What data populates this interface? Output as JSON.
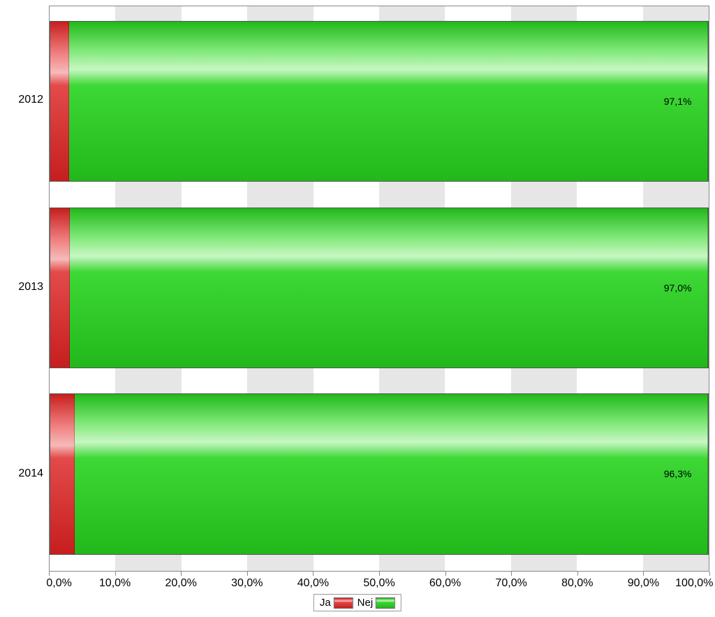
{
  "chart": {
    "type": "bar",
    "orientation": "horizontal",
    "stacked": true,
    "background_color": "#ffffff",
    "plot_border_color": "#888888",
    "grid_band_color": "#e6e6e6",
    "font_family": "Arial",
    "categories": [
      "2012",
      "2013",
      "2014"
    ],
    "bar_row_height_pct": 28.5,
    "bar_row_gap_pct": 4.5,
    "bar_row_top_pad_pct": 2.6,
    "series": [
      {
        "name": "Ja",
        "color_base": "#d92b2b",
        "gradient_stops": [
          {
            "pos": 0,
            "color": "#c71e1e"
          },
          {
            "pos": 20,
            "color": "#f08080"
          },
          {
            "pos": 32,
            "color": "#f7baba"
          },
          {
            "pos": 40,
            "color": "#e34a4a"
          },
          {
            "pos": 100,
            "color": "#c71e1e"
          }
        ],
        "values": [
          2.9,
          3.0,
          3.7
        ]
      },
      {
        "name": "Nej",
        "color_base": "#2ecc27",
        "gradient_stops": [
          {
            "pos": 0,
            "color": "#22b81b"
          },
          {
            "pos": 18,
            "color": "#7ee877"
          },
          {
            "pos": 30,
            "color": "#c8f7c4"
          },
          {
            "pos": 40,
            "color": "#3dd835"
          },
          {
            "pos": 100,
            "color": "#22b81b"
          }
        ],
        "values": [
          97.1,
          97.0,
          96.3
        ],
        "data_labels": [
          "97,1%",
          "97,0%",
          "96,3%"
        ]
      }
    ],
    "x_axis": {
      "min": 0,
      "max": 100,
      "tick_step": 10,
      "tick_labels": [
        "0,0%",
        "10,0%",
        "20,0%",
        "30,0%",
        "40,0%",
        "50,0%",
        "60,0%",
        "70,0%",
        "80,0%",
        "90,0%",
        "100,0%"
      ],
      "label_fontsize": 16,
      "tick_color": "#888888"
    },
    "y_axis": {
      "label_fontsize": 16
    },
    "data_label_fontsize": 14,
    "data_label_color": "#000000",
    "legend": {
      "position": "bottom-center",
      "border_color": "#999999",
      "background_color": "#ffffff",
      "fontsize": 15,
      "items": [
        {
          "label": "Ja",
          "swatch_gradient_ref": 0
        },
        {
          "label": "Nej",
          "swatch_gradient_ref": 1
        }
      ]
    }
  }
}
